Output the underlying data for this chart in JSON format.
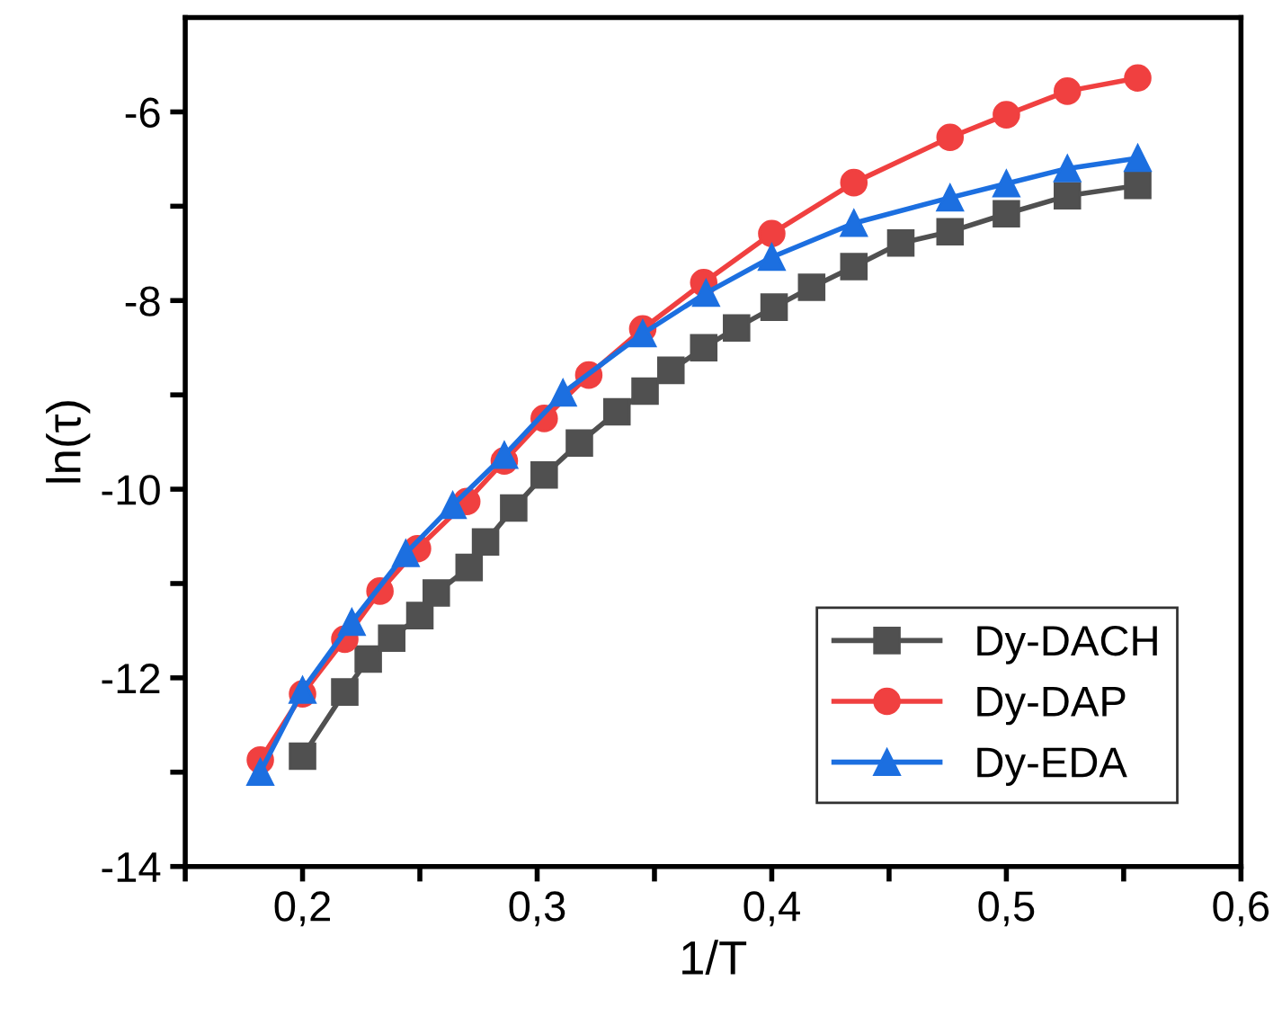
{
  "chart_data": {
    "type": "line",
    "xlabel": "1/T",
    "ylabel": "ln(τ)",
    "xlim": [
      0.15,
      0.6
    ],
    "ylim": [
      -14,
      -5
    ],
    "xticks": [
      {
        "value": 0.15,
        "label": null
      },
      {
        "value": 0.2,
        "label": "0,2"
      },
      {
        "value": 0.25,
        "label": null
      },
      {
        "value": 0.3,
        "label": "0,3"
      },
      {
        "value": 0.35,
        "label": null
      },
      {
        "value": 0.4,
        "label": "0,4"
      },
      {
        "value": 0.45,
        "label": null
      },
      {
        "value": 0.5,
        "label": "0,5"
      },
      {
        "value": 0.55,
        "label": null
      },
      {
        "value": 0.6,
        "label": "0,6"
      }
    ],
    "yticks": [
      -14,
      {
        "value": -13,
        "label": null
      },
      -12,
      {
        "value": -11,
        "label": null
      },
      -10,
      {
        "value": -9,
        "label": null
      },
      -8,
      {
        "value": -7,
        "label": null
      },
      -6
    ],
    "grid": false,
    "legend": "bottom right",
    "series": [
      {
        "name": "Dy-DACH",
        "color": "#505050",
        "marker": "square",
        "x": [
          0.2,
          0.218,
          0.228,
          0.238,
          0.25,
          0.257,
          0.271,
          0.278,
          0.29,
          0.303,
          0.318,
          0.334,
          0.346,
          0.357,
          0.371,
          0.385,
          0.401,
          0.417,
          0.435,
          0.455,
          0.476,
          0.5,
          0.526,
          0.556
        ],
        "values": [
          -12.83,
          -12.15,
          -11.8,
          -11.58,
          -11.34,
          -11.1,
          -10.83,
          -10.56,
          -10.2,
          -9.85,
          -9.51,
          -9.18,
          -8.96,
          -8.74,
          -8.5,
          -8.29,
          -8.07,
          -7.86,
          -7.64,
          -7.39,
          -7.27,
          -7.08,
          -6.89,
          -6.78
        ]
      },
      {
        "name": "Dy-DAP",
        "color": "#f04040",
        "marker": "circle",
        "x": [
          0.182,
          0.2,
          0.218,
          0.233,
          0.249,
          0.27,
          0.286,
          0.303,
          0.322,
          0.345,
          0.371,
          0.4,
          0.435,
          0.476,
          0.5,
          0.526,
          0.556
        ],
        "values": [
          -12.87,
          -12.17,
          -11.59,
          -11.08,
          -10.63,
          -10.13,
          -9.7,
          -9.25,
          -8.79,
          -8.3,
          -7.81,
          -7.29,
          -6.75,
          -6.27,
          -6.03,
          -5.78,
          -5.64
        ]
      },
      {
        "name": "Dy-EDA",
        "color": "#1c6fe0",
        "marker": "triangle",
        "x": [
          0.182,
          0.2,
          0.221,
          0.244,
          0.264,
          0.286,
          0.311,
          0.345,
          0.372,
          0.4,
          0.435,
          0.476,
          0.5,
          0.526,
          0.556
        ],
        "values": [
          -13.0,
          -12.13,
          -11.41,
          -10.68,
          -10.17,
          -9.64,
          -8.98,
          -8.35,
          -7.92,
          -7.54,
          -7.18,
          -6.91,
          -6.76,
          -6.6,
          -6.49
        ]
      }
    ]
  }
}
